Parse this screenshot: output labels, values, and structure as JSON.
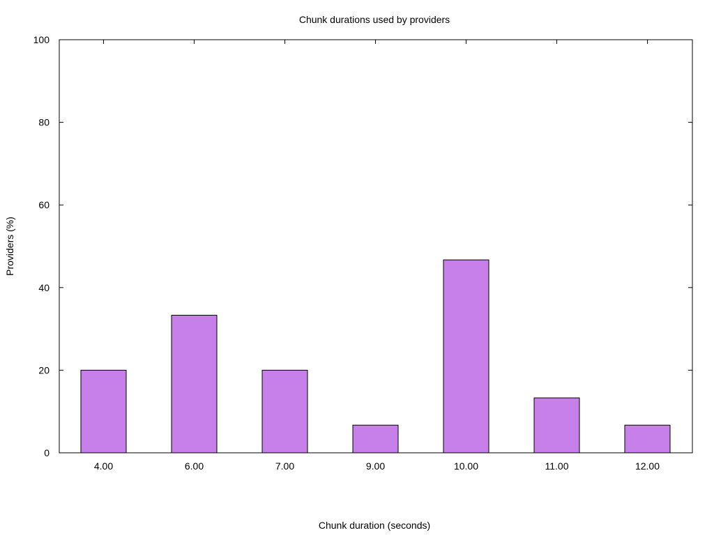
{
  "chart_data": {
    "type": "bar",
    "title": "Chunk durations used by providers",
    "xlabel": "Chunk duration (seconds)",
    "ylabel": "Providers (%)",
    "categories": [
      "4.00",
      "6.00",
      "7.00",
      "9.00",
      "10.00",
      "11.00",
      "12.00"
    ],
    "values": [
      20.0,
      33.3,
      20.0,
      6.7,
      46.7,
      13.3,
      6.7
    ],
    "ylim": [
      0,
      100
    ],
    "yticks": [
      "0",
      "20",
      "40",
      "60",
      "80",
      "100"
    ],
    "bar_color": "#c77fea",
    "grid": false,
    "legend": "none"
  }
}
